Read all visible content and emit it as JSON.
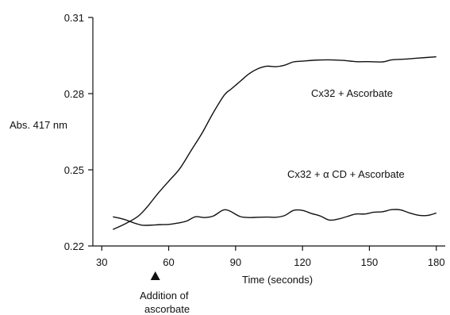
{
  "chart_data": {
    "type": "line",
    "title": "",
    "xlabel": "Time  (seconds)",
    "ylabel": "Abs. 417 nm",
    "xlim": [
      26,
      184
    ],
    "ylim": [
      0.22,
      0.31
    ],
    "xticks": [
      30,
      60,
      90,
      120,
      150,
      180
    ],
    "yticks": [
      0.22,
      0.25,
      0.28,
      0.31
    ],
    "ytick_labels": [
      "0.22",
      "0.25",
      "0.28",
      "0.31"
    ],
    "grid": false,
    "series": [
      {
        "name": "Cx32 + Ascorbate",
        "x": [
          35,
          40,
          46,
          50,
          55,
          60,
          65,
          70,
          75,
          80,
          85,
          88,
          92,
          96,
          100,
          104,
          108,
          112,
          116,
          120,
          126,
          132,
          138,
          144,
          150,
          156,
          160,
          166,
          172,
          180
        ],
        "y": [
          0.2265,
          0.2285,
          0.2315,
          0.235,
          0.2405,
          0.2455,
          0.2505,
          0.2575,
          0.2645,
          0.2725,
          0.2795,
          0.2818,
          0.2848,
          0.2878,
          0.2898,
          0.2908,
          0.2906,
          0.2912,
          0.2925,
          0.2928,
          0.2932,
          0.2933,
          0.2931,
          0.2926,
          0.2926,
          0.2925,
          0.2933,
          0.2936,
          0.294,
          0.2945
        ]
      },
      {
        "name": "Cx32 + α CD + Ascorbate",
        "x": [
          35,
          40,
          44,
          48,
          52,
          56,
          60,
          64,
          68,
          72,
          76,
          80,
          84,
          86,
          88,
          92,
          96,
          100,
          104,
          108,
          112,
          116,
          120,
          124,
          128,
          132,
          136,
          140,
          144,
          148,
          152,
          156,
          160,
          164,
          168,
          172,
          176,
          180
        ],
        "y": [
          0.2315,
          0.2305,
          0.2292,
          0.2282,
          0.2282,
          0.2284,
          0.2285,
          0.229,
          0.2298,
          0.2315,
          0.2312,
          0.2318,
          0.234,
          0.2342,
          0.2335,
          0.2316,
          0.2312,
          0.2313,
          0.2314,
          0.2313,
          0.232,
          0.234,
          0.234,
          0.2328,
          0.2318,
          0.2302,
          0.2306,
          0.2316,
          0.2326,
          0.2326,
          0.2333,
          0.2335,
          0.2343,
          0.2342,
          0.233,
          0.2321,
          0.232,
          0.233
        ]
      }
    ],
    "annotations": [
      {
        "id": "series-label-1",
        "text": "Cx32 + Ascorbate"
      },
      {
        "id": "series-label-2",
        "text": "Cx32 + α CD + Ascorbate"
      },
      {
        "id": "arrow-label-line1",
        "text": "Addition of"
      },
      {
        "id": "arrow-label-line2",
        "text": "ascorbate"
      }
    ],
    "marker": {
      "type": "triangle-up",
      "x": 54,
      "meaning": "Addition of ascorbate"
    }
  }
}
